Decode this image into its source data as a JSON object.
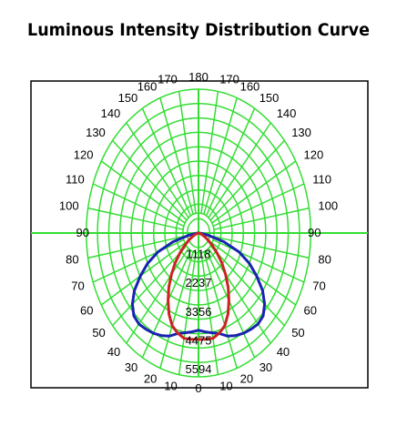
{
  "chart_data": {
    "type": "polar",
    "title": "Luminous Intensity Distribution Curve",
    "angle_labels": [
      "0",
      "10",
      "20",
      "30",
      "40",
      "50",
      "60",
      "70",
      "80",
      "90",
      "100",
      "110",
      "120",
      "130",
      "140",
      "150",
      "160",
      "170",
      "180"
    ],
    "radial_labels": [
      "1118",
      "2237",
      "3356",
      "4475",
      "5594"
    ],
    "rmax": 5594,
    "grid": true,
    "angle_step_grid": 10,
    "colors": {
      "grid": "#33dd33",
      "series_a": "#1a22b0",
      "series_b": "#cc2222"
    },
    "series": [
      {
        "color": "#1a22b0",
        "angles": [
          0,
          5,
          10,
          15,
          20,
          25,
          30,
          35,
          40,
          45,
          50,
          55,
          60,
          65,
          70,
          75,
          80,
          85,
          90
        ],
        "values": [
          3780,
          3860,
          3940,
          4050,
          4270,
          4400,
          4500,
          4570,
          4620,
          4560,
          4300,
          3900,
          3350,
          2800,
          2150,
          1300,
          500,
          100,
          0
        ]
      },
      {
        "color": "#cc2222",
        "angles": [
          0,
          5,
          10,
          15,
          20,
          25,
          30,
          35,
          40,
          45,
          50,
          55,
          60,
          65,
          70,
          75,
          80,
          85,
          90
        ],
        "values": [
          4140,
          4150,
          4160,
          4030,
          3830,
          3480,
          3030,
          2580,
          2100,
          1650,
          1200,
          850,
          560,
          340,
          190,
          90,
          40,
          15,
          0
        ]
      }
    ]
  }
}
